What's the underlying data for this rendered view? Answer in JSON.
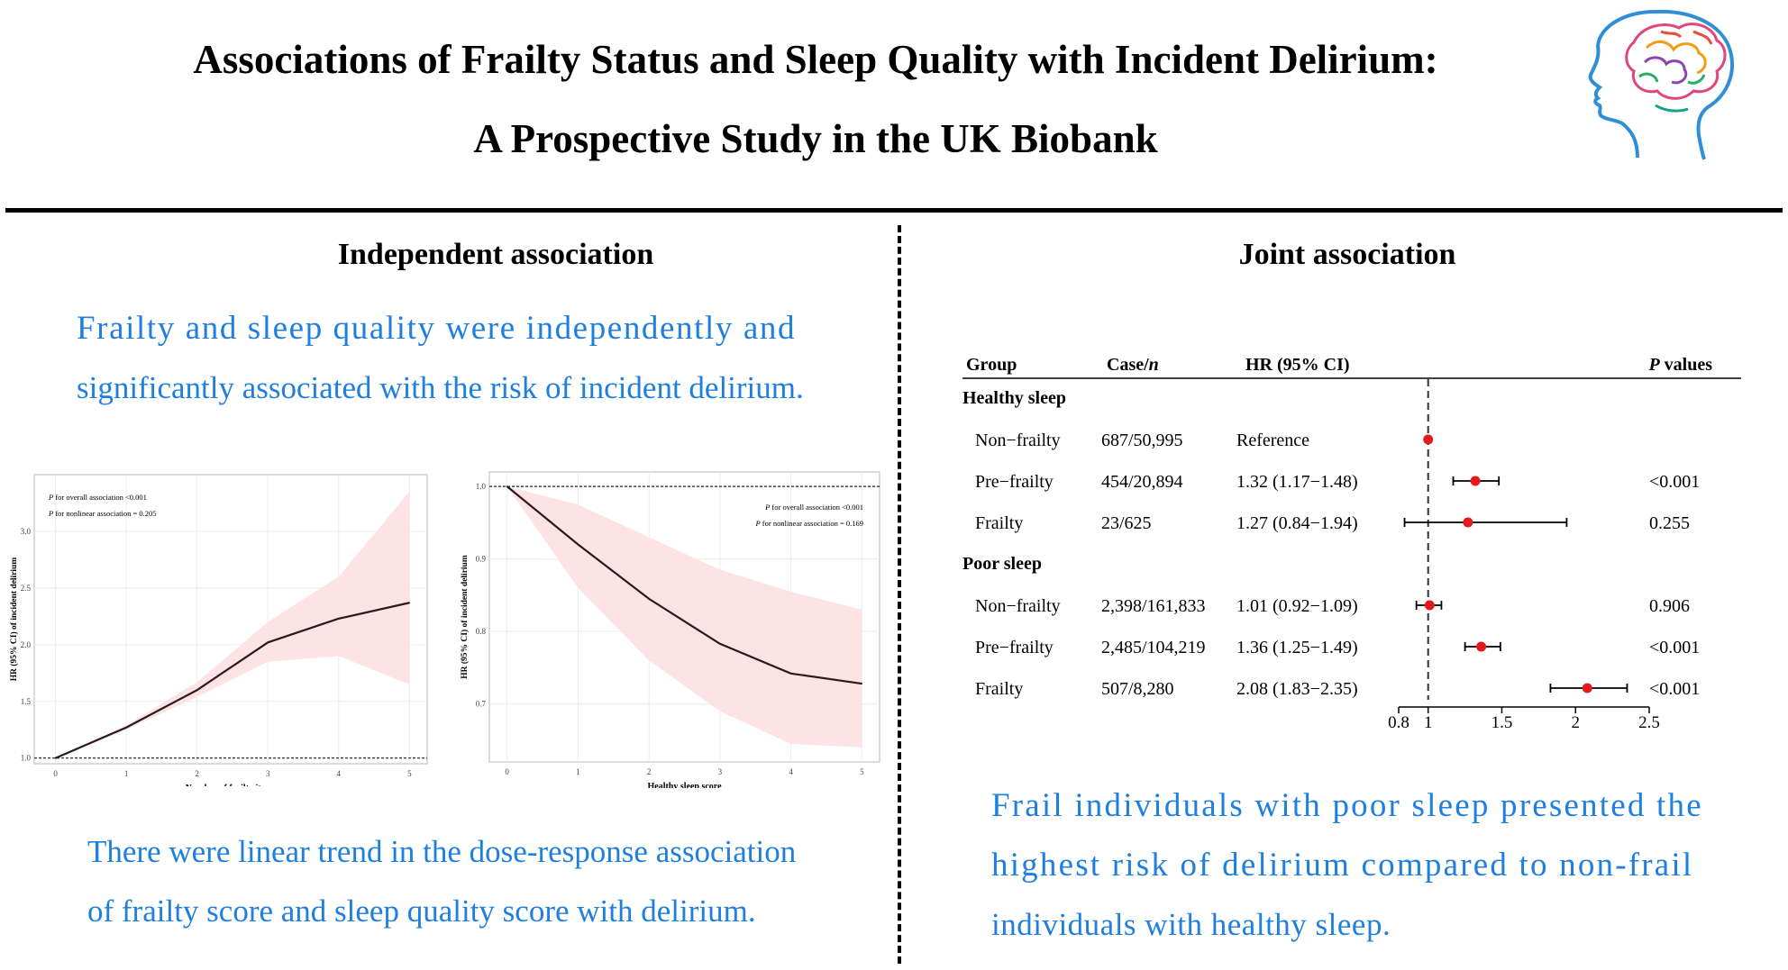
{
  "header": {
    "title_line1": "Associations of Frailty Status and Sleep Quality with Incident Delirium:",
    "title_line2": "A Prospective Study in the UK Biobank"
  },
  "left": {
    "heading": "Independent association",
    "text_top_1": "Frailty and sleep quality were independently and",
    "text_top_2": "significantly associated with the risk of incident delirium.",
    "text_bottom_1": "There were linear trend in the dose-response association",
    "text_bottom_2": "of frailty score and sleep quality score with delirium."
  },
  "right": {
    "heading": "Joint association",
    "text_1": "Frail individuals with poor sleep presented the",
    "text_2": "highest risk of delirium compared to non-frail",
    "text_3": "individuals with healthy sleep."
  },
  "colors": {
    "accent_blue": "#1e7fe0",
    "ci_band": "#fde3e3",
    "marker_red": "#e41a1c"
  },
  "chart_data": [
    {
      "type": "line",
      "xlabel": "Number of frailty items",
      "ylabel": "HR (95% CI) of incident delirium",
      "annotation_1": "P for overall association <0.001",
      "annotation_2": "P for nonlinear association = 0.205",
      "x": [
        0,
        1,
        2,
        3,
        4,
        5
      ],
      "y": [
        1.0,
        1.27,
        1.6,
        2.02,
        2.23,
        2.37
      ],
      "lower": [
        1.0,
        1.25,
        1.54,
        1.85,
        1.9,
        1.65
      ],
      "upper": [
        1.0,
        1.29,
        1.67,
        2.2,
        2.6,
        3.35
      ],
      "xticks": [
        "0",
        "1",
        "2",
        "3",
        "4",
        "5"
      ],
      "yticks": [
        "1.0",
        "1.5",
        "2.0",
        "2.5",
        "3.0"
      ],
      "xlim": [
        -0.3,
        5.25
      ],
      "ylim": [
        0.95,
        3.5
      ],
      "reference_y": 1.0,
      "grid": true
    },
    {
      "type": "line",
      "xlabel": "Healthy sleep score",
      "ylabel": "HR (95% CI) of incident delirium",
      "annotation_1": "P for overall association <0.001",
      "annotation_2": "P for nonlinear association = 0.169",
      "x": [
        0,
        1,
        2,
        3,
        4,
        5
      ],
      "y": [
        1.0,
        0.92,
        0.845,
        0.783,
        0.742,
        0.728
      ],
      "lower": [
        1.0,
        0.86,
        0.76,
        0.69,
        0.645,
        0.64
      ],
      "upper": [
        1.0,
        0.975,
        0.93,
        0.885,
        0.855,
        0.83
      ],
      "xticks": [
        "0",
        "1",
        "2",
        "3",
        "4",
        "5"
      ],
      "yticks": [
        "0.7",
        "0.8",
        "0.9",
        "1.0"
      ],
      "xlim": [
        -0.25,
        5.25
      ],
      "ylim": [
        0.62,
        1.02
      ],
      "reference_y": 1.0,
      "grid": true
    },
    {
      "type": "forest",
      "columns": {
        "group": "Group",
        "case": "Case/",
        "case_italic": "n",
        "hr": "HR (95% CI)",
        "p_italic": "P",
        "p": " values"
      },
      "sections": [
        {
          "label": "Healthy sleep",
          "rows": [
            {
              "group": "Non−frailty",
              "case": "687/50,995",
              "hr_text": "Reference",
              "p": "",
              "hr": 1.0,
              "lo": 1.0,
              "hi": 1.0
            },
            {
              "group": "Pre−frailty",
              "case": "454/20,894",
              "hr_text": "1.32 (1.17−1.48)",
              "p": "<0.001",
              "hr": 1.32,
              "lo": 1.17,
              "hi": 1.48
            },
            {
              "group": "Frailty",
              "case": "23/625",
              "hr_text": "1.27 (0.84−1.94)",
              "p": "0.255",
              "hr": 1.27,
              "lo": 0.84,
              "hi": 1.94
            }
          ]
        },
        {
          "label": "Poor sleep",
          "rows": [
            {
              "group": "Non−frailty",
              "case": "2,398/161,833",
              "hr_text": "1.01 (0.92−1.09)",
              "p": "0.906",
              "hr": 1.01,
              "lo": 0.92,
              "hi": 1.09
            },
            {
              "group": "Pre−frailty",
              "case": "2,485/104,219",
              "hr_text": "1.36 (1.25−1.49)",
              "p": "<0.001",
              "hr": 1.36,
              "lo": 1.25,
              "hi": 1.49
            },
            {
              "group": "Frailty",
              "case": "507/8,280",
              "hr_text": "2.08 (1.83−2.35)",
              "p": "<0.001",
              "hr": 2.08,
              "lo": 1.83,
              "hi": 2.35
            }
          ]
        }
      ],
      "xticks": [
        "0.8",
        "1",
        "1.5",
        "2",
        "2.5"
      ],
      "xlim": [
        0.8,
        2.5
      ],
      "reference_x": 1
    }
  ]
}
